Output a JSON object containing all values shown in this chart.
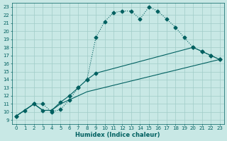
{
  "xlabel": "Humidex (Indice chaleur)",
  "bg_color": "#c8e8e5",
  "grid_color": "#a0ccc8",
  "line_color": "#006060",
  "xlim": [
    -0.5,
    23.5
  ],
  "ylim": [
    8.5,
    23.5
  ],
  "xticks": [
    0,
    1,
    2,
    3,
    4,
    5,
    6,
    7,
    8,
    9,
    10,
    11,
    12,
    13,
    14,
    15,
    16,
    17,
    18,
    19,
    20,
    21,
    22,
    23
  ],
  "yticks": [
    9,
    10,
    11,
    12,
    13,
    14,
    15,
    16,
    17,
    18,
    19,
    20,
    21,
    22,
    23
  ],
  "line1_x": [
    0,
    1,
    2,
    3,
    4,
    5,
    6,
    7,
    8,
    9,
    10,
    11,
    12,
    13,
    14,
    15,
    16,
    17,
    18,
    19,
    20,
    21,
    22,
    23
  ],
  "line1_y": [
    9.5,
    10.2,
    11.0,
    11.0,
    10.0,
    10.3,
    11.5,
    13.0,
    14.0,
    19.2,
    21.2,
    22.3,
    22.5,
    22.5,
    21.5,
    23.0,
    22.5,
    21.5,
    20.5,
    19.2,
    18.0,
    17.5,
    17.0,
    16.5
  ],
  "line2_x": [
    0,
    2,
    3,
    4,
    5,
    6,
    7,
    8,
    9,
    20,
    21,
    22,
    23
  ],
  "line2_y": [
    9.5,
    11.0,
    10.2,
    10.2,
    11.2,
    12.0,
    13.0,
    14.0,
    14.8,
    18.0,
    17.5,
    17.0,
    16.5
  ],
  "line3_x": [
    0,
    2,
    3,
    4,
    5,
    6,
    7,
    8,
    23
  ],
  "line3_y": [
    9.5,
    11.0,
    10.2,
    10.2,
    11.0,
    11.5,
    12.0,
    12.5,
    16.5
  ]
}
